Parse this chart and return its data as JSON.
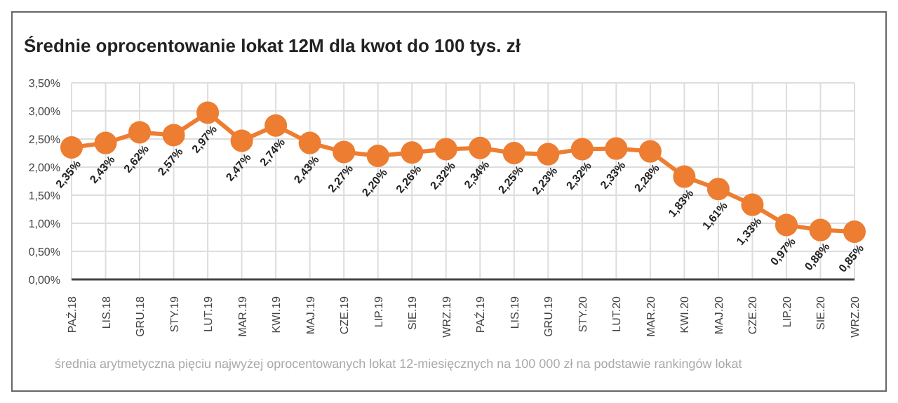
{
  "chart_data": {
    "type": "line",
    "title": "Średnie oprocentowanie lokat 12M dla kwot do 100 tys. zł",
    "categories": [
      "PAŹ.18",
      "LIS.18",
      "GRU.18",
      "STY.19",
      "LUT.19",
      "MAR.19",
      "KWI.19",
      "MAJ.19",
      "CZE.19",
      "LIP.19",
      "SIE.19",
      "WRZ.19",
      "PAŹ.19",
      "LIS.19",
      "GRU.19",
      "STY.20",
      "LUT.20",
      "MAR.20",
      "KWI.20",
      "MAJ.20",
      "CZE.20",
      "LIP.20",
      "SIE.20",
      "WRZ.20"
    ],
    "series": [
      {
        "color": "#ed7d31",
        "values": [
          2.35,
          2.43,
          2.62,
          2.57,
          2.97,
          2.47,
          2.74,
          2.43,
          2.27,
          2.2,
          2.26,
          2.32,
          2.34,
          2.25,
          2.23,
          2.32,
          2.33,
          2.28,
          1.83,
          1.61,
          1.33,
          0.97,
          0.88,
          0.85
        ],
        "value_labels": [
          "2,35%",
          "2,43%",
          "2,62%",
          "2,57%",
          "2,97%",
          "2,47%",
          "2,74%",
          "2,43%",
          "2,27%",
          "2,20%",
          "2,26%",
          "2,32%",
          "2,34%",
          "2,25%",
          "2,23%",
          "2,32%",
          "2,33%",
          "2,28%",
          "1,83%",
          "1,61%",
          "1,33%",
          "0,97%",
          "0,88%",
          "0,85%"
        ]
      }
    ],
    "ylim": [
      0,
      3.5
    ],
    "yticks": [
      {
        "value": 0,
        "label": "0,00%"
      },
      {
        "value": 0.5,
        "label": "0,50%"
      },
      {
        "value": 1,
        "label": "1,00%"
      },
      {
        "value": 1.5,
        "label": "1,50%"
      },
      {
        "value": 2,
        "label": "2,00%"
      },
      {
        "value": 2.5,
        "label": "2,50%"
      },
      {
        "value": 3,
        "label": "3,00%"
      },
      {
        "value": 3.5,
        "label": "3,50%"
      }
    ],
    "grid": true,
    "marker": "circle",
    "line_style": "solid",
    "legend": false,
    "annotations": [
      "średnia arytmetyczna pięciu najwyżej oprocentowanych lokat 12-miesięcznych na 100 000 zł na podstawie rankingów lokat"
    ]
  }
}
